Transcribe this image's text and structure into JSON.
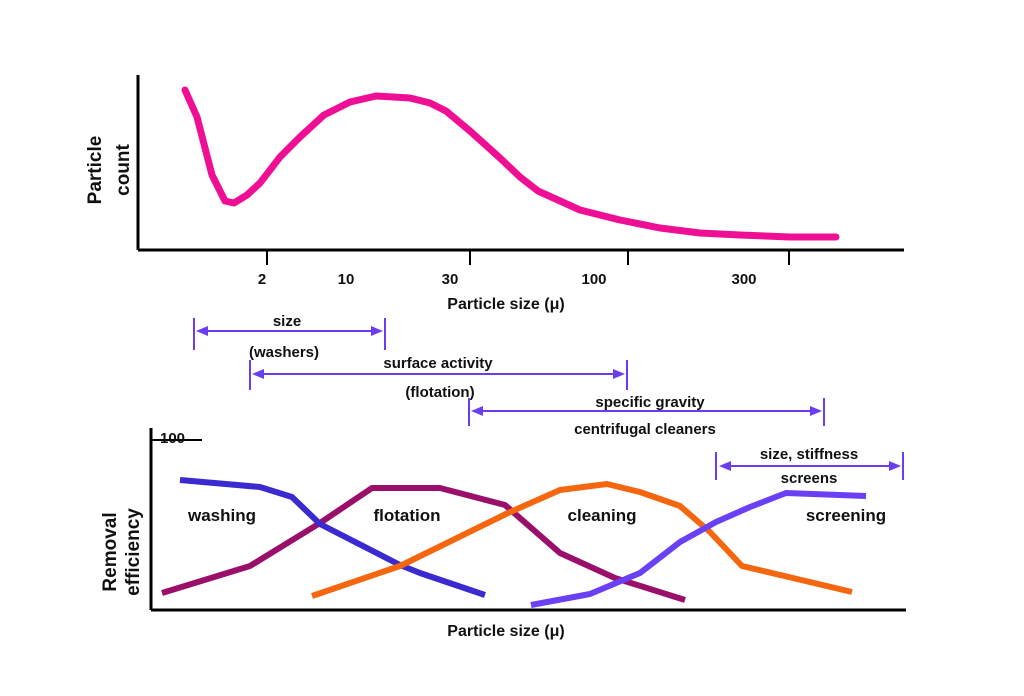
{
  "top_plot": {
    "y_axis_label_line1": "Particle",
    "y_axis_label_line2": "count",
    "x_axis_title": "Particle size (μ)",
    "tick_labels": [
      "2",
      "10",
      "30",
      "100",
      "300"
    ],
    "curve_color": "#ee0f95"
  },
  "ranges": [
    {
      "label_top": "size",
      "label_bottom": "(washers)",
      "color": "#6a3df0"
    },
    {
      "label_top": "surface activity",
      "label_bottom": "(flotation)",
      "color": "#6a3df0"
    },
    {
      "label_top": "specific gravity",
      "label_bottom": "centrifugal cleaners",
      "color": "#6a3df0"
    },
    {
      "label_top": "size, stiffness",
      "label_bottom": "screens",
      "color": "#6a3df0"
    }
  ],
  "bottom_plot": {
    "y_axis_label_line1": "Removal",
    "y_axis_label_line2": "efficiency",
    "y_top_tick": "100",
    "x_axis_title": "Particle size (μ)",
    "curves": [
      {
        "label": "washing",
        "color": "#3a2ad0"
      },
      {
        "label": "flotation",
        "color": "#9a0f6a"
      },
      {
        "label": "cleaning",
        "color": "#f5670f"
      },
      {
        "label": "screening",
        "color": "#6a40f5"
      }
    ]
  }
}
